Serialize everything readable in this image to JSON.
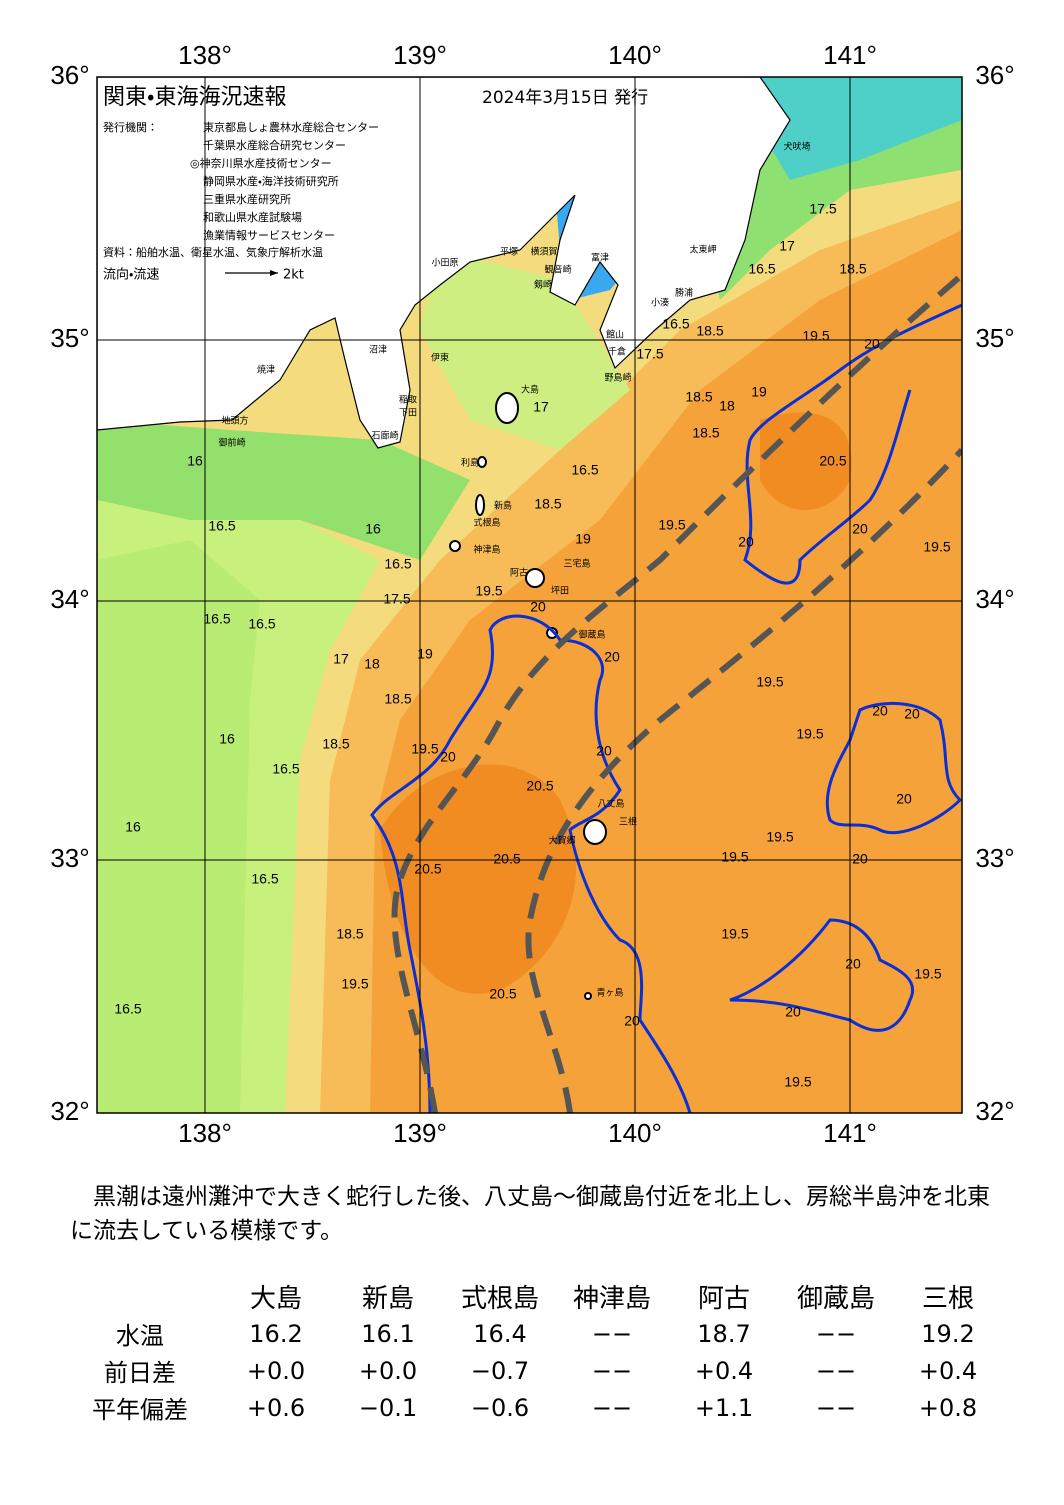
{
  "header": {
    "title": "関東・東海海況速報",
    "date": "2024年3月15日 発行"
  },
  "issuers": {
    "label": "発行機関：",
    "names": [
      "東京都島しょ農林水産総合センター",
      "千葉県水産総合研究センター",
      "◎神奈川県水産技術センター",
      "静岡県水産・海洋技術研究所",
      "三重県水産研究所",
      "和歌山県水産試験場",
      "漁業情報サービスセンター"
    ]
  },
  "source": "資料：船舶水温、衛星水温、気象庁解析水温",
  "legend": {
    "label": "流向・流速",
    "speed": "2kt"
  },
  "lon_labels": [
    "138°",
    "139°",
    "140°",
    "141°"
  ],
  "lat_labels": [
    "36°",
    "35°",
    "34°",
    "33°",
    "32°"
  ],
  "contour_labels": [
    "16",
    "16.5",
    "16",
    "16.5",
    "16.5",
    "17",
    "18",
    "18.5",
    "19",
    "16",
    "16.5",
    "18.5",
    "19.5",
    "20",
    "20.5",
    "16",
    "20.5",
    "20.5",
    "16.5",
    "18.5",
    "19.5",
    "20.5",
    "16.5",
    "20",
    "19.5",
    "19.5",
    "19.5",
    "19.5",
    "20",
    "19.5",
    "20",
    "19.5",
    "19.5",
    "20",
    "20",
    "20",
    "20",
    "20.5",
    "20",
    "19.5",
    "20",
    "19.5",
    "19",
    "20",
    "19.5",
    "20",
    "20",
    "18.5",
    "18",
    "19",
    "18.5",
    "19.5",
    "20",
    "18.5",
    "16.5",
    "17.5",
    "17",
    "18.5",
    "16.5",
    "17.5",
    "17",
    "16.5",
    "18.5",
    "17.5",
    "16.5"
  ],
  "place_names": [
    "犬吠埼",
    "太東岬",
    "富津",
    "平塚",
    "横須賀",
    "観音崎",
    "剱崎",
    "小田原",
    "小湊",
    "勝浦",
    "館山",
    "千倉",
    "野島崎",
    "沼津",
    "伊東",
    "焼津",
    "稲取",
    "下田",
    "石廊崎",
    "御前崎",
    "地頭方",
    "大島",
    "利島",
    "新島",
    "式根島",
    "神津島",
    "三宅島",
    "阿古",
    "坪田",
    "御蔵島",
    "八丈島",
    "三根",
    "大賀郷",
    "青ヶ島"
  ],
  "summary": "黒潮は遠州灘沖で大きく蛇行した後、八丈島～御蔵島付近を北上し、房総半島沖を北東に流去している模様です。",
  "table": {
    "columns": [
      "大島",
      "新島",
      "式根島",
      "神津島",
      "阿古",
      "御蔵島",
      "三根"
    ],
    "rows": [
      {
        "label": "水温",
        "values": [
          "16.2",
          "16.1",
          "16.4",
          "−−",
          "18.7",
          "−−",
          "19.2"
        ]
      },
      {
        "label": "前日差",
        "values": [
          "+0.0",
          "+0.0",
          "−0.7",
          "−−",
          "+0.4",
          "−−",
          "+0.4"
        ]
      },
      {
        "label": "平年偏差",
        "values": [
          "+0.6",
          "−0.1",
          "−0.6",
          "−−",
          "+1.1",
          "−−",
          "+0.8"
        ]
      }
    ]
  }
}
